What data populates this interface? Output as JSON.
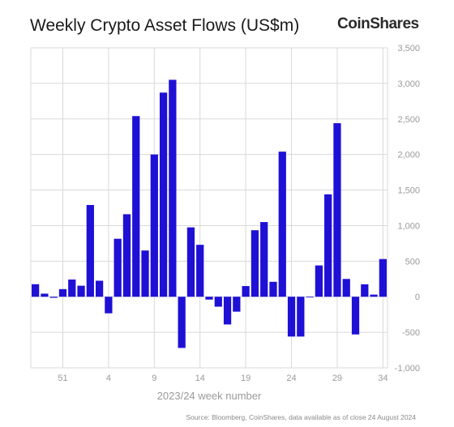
{
  "header": {
    "title": "Weekly Crypto Asset Flows (US$m)",
    "brand": "CoinShares"
  },
  "footer": {
    "source": "Source: Bloomberg, CoinShares, data available as of close 24 August 2024"
  },
  "colors": {
    "bar": "#1f10d6",
    "grid": "#d9d9d9",
    "tick_text": "#9a9a9a"
  },
  "chart_data": {
    "type": "bar",
    "title": "Weekly Crypto Asset Flows (US$m)",
    "xlabel": "2023/24 week number",
    "ylabel": "",
    "ylim": [
      -1000,
      3500
    ],
    "yticks": [
      -1000,
      -500,
      0,
      500,
      1000,
      1500,
      2000,
      2500,
      3000,
      3500
    ],
    "ytick_labels": [
      "-1,000",
      "-500",
      "0",
      "500",
      "1,000",
      "1,500",
      "2,000",
      "2,500",
      "3,000",
      "3,500"
    ],
    "y_axis_position": "right",
    "grid": true,
    "categories": [
      "48",
      "49",
      "50",
      "51",
      "52",
      "1",
      "2",
      "3",
      "4",
      "5",
      "6",
      "7",
      "8",
      "9",
      "10",
      "11",
      "12",
      "13",
      "14",
      "15",
      "16",
      "17",
      "18",
      "19",
      "20",
      "21",
      "22",
      "23",
      "24",
      "25",
      "26",
      "27",
      "28",
      "29",
      "30",
      "31",
      "32",
      "33",
      "34"
    ],
    "xtick_labels": [
      "51",
      "4",
      "9",
      "14",
      "19",
      "24",
      "29",
      "34"
    ],
    "values": [
      176,
      43,
      -15,
      107,
      242,
      155,
      1290,
      225,
      -233,
      815,
      1160,
      2540,
      650,
      2000,
      2870,
      3050,
      -720,
      975,
      730,
      -40,
      -140,
      -390,
      -210,
      150,
      935,
      1050,
      210,
      2040,
      -560,
      -560,
      -10,
      440,
      1440,
      2440,
      250,
      -530,
      175,
      30,
      530
    ]
  }
}
